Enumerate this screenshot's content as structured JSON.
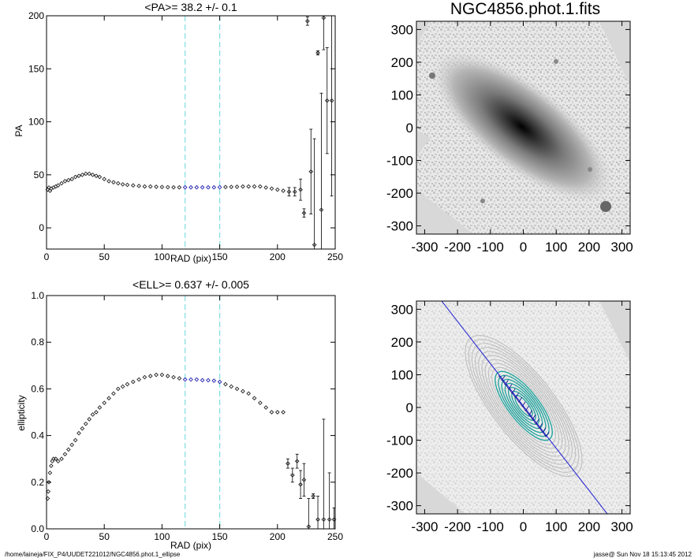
{
  "page": {
    "footer_left": "/home/laineja/FIX_P4/UUDET221012/NGC4856.phot.1_ellipse",
    "footer_right": "jasse@  Sun Nov 18 15:13:45 2012"
  },
  "colors": {
    "guide_line": "#7fdde0",
    "fit_points": "#2020b0",
    "major_axis": "#1a1ad0",
    "contour_inner": "#2aa6a0",
    "contour_outer": "#bfbfbf",
    "mask": "#d8d8d8"
  },
  "chart_data": [
    {
      "type": "scatter",
      "title": "<PA>=  38.2 +/-   0.1",
      "xlabel": "RAD (pix)",
      "ylabel": "PA",
      "xlim": [
        0,
        250
      ],
      "ylim": [
        -20,
        200
      ],
      "xticks": [
        "0",
        "50",
        "100",
        "150",
        "200",
        "250"
      ],
      "yticks": [
        "0",
        "50",
        "100",
        "150",
        "200"
      ],
      "vlines": [
        120,
        150
      ],
      "points": [
        [
          1,
          36
        ],
        [
          2,
          38
        ],
        [
          3,
          35
        ],
        [
          4,
          37
        ],
        [
          6,
          38
        ],
        [
          8,
          39
        ],
        [
          10,
          40
        ],
        [
          13,
          42
        ],
        [
          16,
          44
        ],
        [
          19,
          45
        ],
        [
          22,
          46
        ],
        [
          25,
          48
        ],
        [
          28,
          49
        ],
        [
          31,
          50
        ],
        [
          34,
          51
        ],
        [
          37,
          51
        ],
        [
          40,
          50
        ],
        [
          43,
          49
        ],
        [
          46,
          48
        ],
        [
          50,
          46
        ],
        [
          54,
          44
        ],
        [
          58,
          43
        ],
        [
          62,
          42
        ],
        [
          66,
          41
        ],
        [
          70,
          40.5
        ],
        [
          75,
          40
        ],
        [
          80,
          39.5
        ],
        [
          85,
          39
        ],
        [
          90,
          39
        ],
        [
          95,
          38.7
        ],
        [
          100,
          38.5
        ],
        [
          105,
          38.3
        ],
        [
          110,
          38.2
        ],
        [
          115,
          38.2
        ],
        [
          120,
          38.2
        ],
        [
          125,
          38.2
        ],
        [
          130,
          38.2
        ],
        [
          135,
          38.2
        ],
        [
          140,
          38.2
        ],
        [
          145,
          38.2
        ],
        [
          150,
          38.3
        ],
        [
          155,
          38.5
        ],
        [
          160,
          38.6
        ],
        [
          165,
          38.7
        ],
        [
          170,
          39
        ],
        [
          175,
          39
        ],
        [
          180,
          39
        ],
        [
          185,
          39
        ],
        [
          190,
          38
        ],
        [
          195,
          37
        ],
        [
          200,
          36
        ],
        [
          205,
          35
        ],
        [
          210,
          34
        ],
        [
          215,
          34
        ],
        [
          220,
          36
        ],
        [
          223,
          14
        ],
        [
          226,
          195
        ],
        [
          229,
          53
        ],
        [
          232,
          -16
        ],
        [
          235,
          165
        ],
        [
          238,
          17
        ],
        [
          240,
          198
        ],
        [
          243,
          120
        ],
        [
          247,
          120
        ]
      ],
      "errors": [
        [
          210,
          4
        ],
        [
          215,
          4
        ],
        [
          220,
          10
        ],
        [
          223,
          4
        ],
        [
          226,
          4
        ],
        [
          229,
          40
        ],
        [
          232,
          100
        ],
        [
          235,
          2
        ],
        [
          238,
          110
        ],
        [
          240,
          30
        ],
        [
          243,
          50
        ],
        [
          247,
          90
        ]
      ],
      "fit_range": [
        120,
        150
      ]
    },
    {
      "type": "scatter",
      "title": "<ELL>= 0.637 +/-  0.005",
      "xlabel": "RAD (pix)",
      "ylabel": "ellipticity",
      "xlim": [
        0,
        250
      ],
      "ylim": [
        0.0,
        1.0
      ],
      "xticks": [
        "0",
        "50",
        "100",
        "150",
        "200",
        "250"
      ],
      "yticks": [
        "0.0",
        "0.2",
        "0.4",
        "0.6",
        "0.8",
        "1.0"
      ],
      "vlines": [
        120,
        150
      ],
      "points": [
        [
          1,
          0.13
        ],
        [
          1.5,
          0.16
        ],
        [
          2,
          0.2
        ],
        [
          3,
          0.24
        ],
        [
          4,
          0.27
        ],
        [
          5,
          0.29
        ],
        [
          6,
          0.3
        ],
        [
          8,
          0.3
        ],
        [
          10,
          0.29
        ],
        [
          13,
          0.3
        ],
        [
          16,
          0.32
        ],
        [
          19,
          0.34
        ],
        [
          22,
          0.36
        ],
        [
          25,
          0.38
        ],
        [
          28,
          0.41
        ],
        [
          31,
          0.43
        ],
        [
          34,
          0.45
        ],
        [
          37,
          0.47
        ],
        [
          40,
          0.49
        ],
        [
          43,
          0.5
        ],
        [
          46,
          0.52
        ],
        [
          50,
          0.54
        ],
        [
          54,
          0.56
        ],
        [
          58,
          0.58
        ],
        [
          62,
          0.6
        ],
        [
          66,
          0.61
        ],
        [
          70,
          0.62
        ],
        [
          75,
          0.63
        ],
        [
          80,
          0.64
        ],
        [
          85,
          0.65
        ],
        [
          90,
          0.655
        ],
        [
          95,
          0.66
        ],
        [
          100,
          0.66
        ],
        [
          105,
          0.655
        ],
        [
          110,
          0.65
        ],
        [
          115,
          0.645
        ],
        [
          120,
          0.64
        ],
        [
          125,
          0.64
        ],
        [
          130,
          0.64
        ],
        [
          135,
          0.637
        ],
        [
          140,
          0.637
        ],
        [
          145,
          0.635
        ],
        [
          150,
          0.63
        ],
        [
          155,
          0.62
        ],
        [
          160,
          0.61
        ],
        [
          165,
          0.6
        ],
        [
          170,
          0.59
        ],
        [
          175,
          0.58
        ],
        [
          180,
          0.56
        ],
        [
          185,
          0.54
        ],
        [
          190,
          0.52
        ],
        [
          195,
          0.5
        ],
        [
          200,
          0.5
        ],
        [
          205,
          0.5
        ],
        [
          209,
          0.28
        ],
        [
          213,
          0.23
        ],
        [
          217,
          0.29
        ],
        [
          220,
          0.19
        ],
        [
          223,
          0.21
        ],
        [
          227,
          0.01
        ],
        [
          231,
          0.14
        ],
        [
          235,
          0.04
        ],
        [
          240,
          0.04
        ],
        [
          245,
          0.04
        ],
        [
          249,
          0.04
        ]
      ],
      "errors": [
        [
          209,
          0.02
        ],
        [
          213,
          0.03
        ],
        [
          217,
          0.03
        ],
        [
          220,
          0.06
        ],
        [
          223,
          0.07
        ],
        [
          227,
          0.12
        ],
        [
          231,
          0.01
        ],
        [
          235,
          0.1
        ],
        [
          240,
          0.43
        ],
        [
          245,
          0.2
        ],
        [
          249,
          0.05
        ]
      ],
      "fit_range": [
        120,
        150
      ]
    }
  ],
  "images": [
    {
      "title": "NGC4856.phot.1.fits",
      "ticks": [
        "-300",
        "-200",
        "-100",
        "0",
        "100",
        "200",
        "300"
      ]
    },
    {
      "title": "",
      "ticks": [
        "-300",
        "-200",
        "-100",
        "0",
        "100",
        "200",
        "300"
      ]
    }
  ]
}
